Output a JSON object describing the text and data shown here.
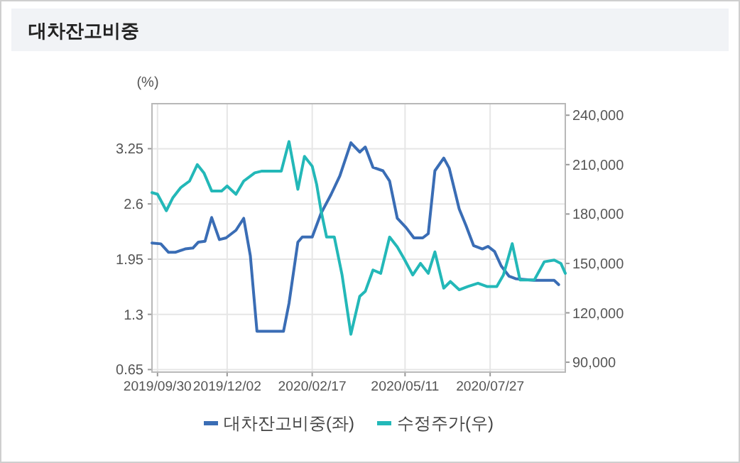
{
  "chart_data": {
    "type": "line",
    "title": "대차잔고비중",
    "ylabel": "(%)",
    "legend": "bottom",
    "grid": true,
    "line_style": "solid",
    "xlim": [
      "2019-09-25",
      "2020-10-03"
    ],
    "xticks": [
      {
        "value": "2019-09-30",
        "label": "2019/09/30"
      },
      {
        "value": "2019-12-02",
        "label": "2019/12/02"
      },
      {
        "value": "2020-02-17",
        "label": "2020/02/17"
      },
      {
        "value": "2020-05-11",
        "label": "2020/05/11"
      },
      {
        "value": "2020-07-27",
        "label": "2020/07/27"
      }
    ],
    "ylim": [
      0.62,
      3.78
    ],
    "yticks": [
      0.65,
      1.3,
      1.95,
      2.6,
      3.25
    ],
    "y2lim": [
      84000,
      247000
    ],
    "y2ticks": [
      {
        "value": 90000,
        "label": "90,000"
      },
      {
        "value": 120000,
        "label": "120,000"
      },
      {
        "value": 150000,
        "label": "150,000"
      },
      {
        "value": 180000,
        "label": "180,000"
      },
      {
        "value": 210000,
        "label": "210,000"
      },
      {
        "value": 240000,
        "label": "240,000"
      }
    ],
    "series": [
      {
        "name": "대차잔고비중(좌)",
        "color": "#3a6db5",
        "x": [
          "2019-09-25",
          "2019-10-03",
          "2019-10-10",
          "2019-10-16",
          "2019-10-25",
          "2019-11-01",
          "2019-11-06",
          "2019-11-12",
          "2019-11-18",
          "2019-11-25",
          "2019-12-01",
          "2019-12-10",
          "2019-12-17",
          "2019-12-23",
          "2019-12-29",
          "2020-01-22",
          "2020-01-27",
          "2020-02-04",
          "2020-02-08",
          "2020-02-17",
          "2020-02-25",
          "2020-03-05",
          "2020-03-13",
          "2020-03-23",
          "2020-03-31",
          "2020-04-05",
          "2020-04-12",
          "2020-04-21",
          "2020-04-27",
          "2020-05-04",
          "2020-05-12",
          "2020-05-19",
          "2020-05-27",
          "2020-06-01",
          "2020-06-07",
          "2020-06-15",
          "2020-06-20",
          "2020-06-29",
          "2020-07-05",
          "2020-07-12",
          "2020-07-20",
          "2020-07-25",
          "2020-07-31",
          "2020-08-06",
          "2020-08-13",
          "2020-08-19",
          "2020-09-05",
          "2020-09-23",
          "2020-09-27"
        ],
        "values": [
          2.14,
          2.13,
          2.03,
          2.03,
          2.07,
          2.08,
          2.15,
          2.16,
          2.44,
          2.18,
          2.2,
          2.29,
          2.43,
          1.99,
          1.1,
          1.1,
          1.43,
          2.15,
          2.21,
          2.21,
          2.49,
          2.71,
          2.93,
          3.32,
          3.21,
          3.27,
          3.03,
          2.99,
          2.87,
          2.43,
          2.32,
          2.2,
          2.2,
          2.25,
          2.99,
          3.14,
          3.02,
          2.54,
          2.35,
          2.11,
          2.07,
          2.1,
          2.04,
          1.87,
          1.75,
          1.72,
          1.7,
          1.7,
          1.65
        ]
      },
      {
        "name": "수정주가(우)",
        "color": "#23b8b8",
        "axis": "y2",
        "x": [
          "2019-09-25",
          "2019-09-30",
          "2019-10-08",
          "2019-10-14",
          "2019-10-21",
          "2019-10-29",
          "2019-11-05",
          "2019-11-11",
          "2019-11-18",
          "2019-11-27",
          "2019-12-02",
          "2019-12-10",
          "2019-12-17",
          "2019-12-27",
          "2020-01-02",
          "2020-01-20",
          "2020-01-27",
          "2020-02-04",
          "2020-02-10",
          "2020-02-17",
          "2020-02-21",
          "2020-02-25",
          "2020-03-01",
          "2020-03-08",
          "2020-03-15",
          "2020-03-23",
          "2020-03-31",
          "2020-04-05",
          "2020-04-12",
          "2020-04-19",
          "2020-04-27",
          "2020-05-04",
          "2020-05-10",
          "2020-05-18",
          "2020-05-25",
          "2020-06-01",
          "2020-06-07",
          "2020-06-15",
          "2020-06-21",
          "2020-06-29",
          "2020-07-07",
          "2020-07-16",
          "2020-07-24",
          "2020-08-02",
          "2020-08-08",
          "2020-08-16",
          "2020-08-23",
          "2020-09-05",
          "2020-09-14",
          "2020-09-23",
          "2020-09-29",
          "2020-10-03"
        ],
        "values": [
          193000,
          192000,
          182000,
          190000,
          196000,
          200000,
          210000,
          205000,
          194000,
          194000,
          197000,
          192000,
          200000,
          205000,
          206000,
          206000,
          224000,
          195000,
          215000,
          209000,
          198000,
          182000,
          166000,
          166000,
          143000,
          107000,
          130000,
          133000,
          146000,
          144000,
          166000,
          160000,
          153000,
          143000,
          150000,
          144000,
          157000,
          135000,
          139000,
          134000,
          136000,
          138000,
          136000,
          136000,
          143000,
          162000,
          140000,
          140000,
          151000,
          152000,
          150000,
          144000
        ]
      }
    ]
  }
}
